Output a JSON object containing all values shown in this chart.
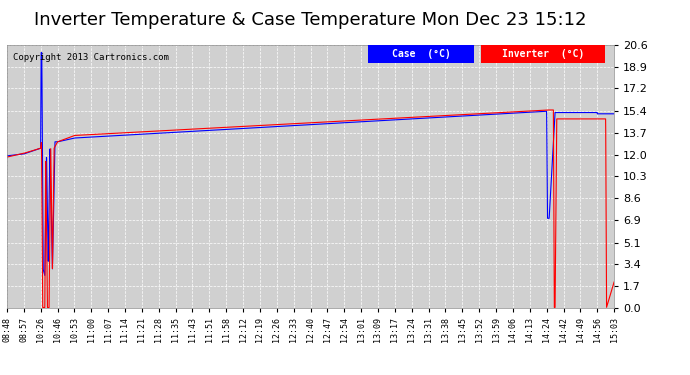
{
  "title": "Inverter Temperature & Case Temperature Mon Dec 23 15:12",
  "copyright": "Copyright 2013 Cartronics.com",
  "legend_label_case": "Case  (°C)",
  "legend_label_inv": "Inverter  (°C)",
  "y_ticks": [
    0.0,
    1.7,
    3.4,
    5.1,
    6.9,
    8.6,
    10.3,
    12.0,
    13.7,
    15.4,
    17.2,
    18.9,
    20.6
  ],
  "ylim": [
    0.0,
    20.6
  ],
  "background_color": "#ffffff",
  "plot_bg_color": "#d0d0d0",
  "grid_color": "#ffffff",
  "title_fontsize": 13,
  "x_tick_labels": [
    "08:48",
    "08:57",
    "10:26",
    "10:46",
    "10:53",
    "11:00",
    "11:07",
    "11:14",
    "11:21",
    "11:28",
    "11:35",
    "11:43",
    "11:51",
    "11:58",
    "12:12",
    "12:19",
    "12:26",
    "12:33",
    "12:40",
    "12:47",
    "12:54",
    "13:01",
    "13:09",
    "13:17",
    "13:24",
    "13:31",
    "13:38",
    "13:45",
    "13:52",
    "13:59",
    "14:06",
    "14:13",
    "14:24",
    "14:42",
    "14:49",
    "14:56",
    "15:03"
  ]
}
